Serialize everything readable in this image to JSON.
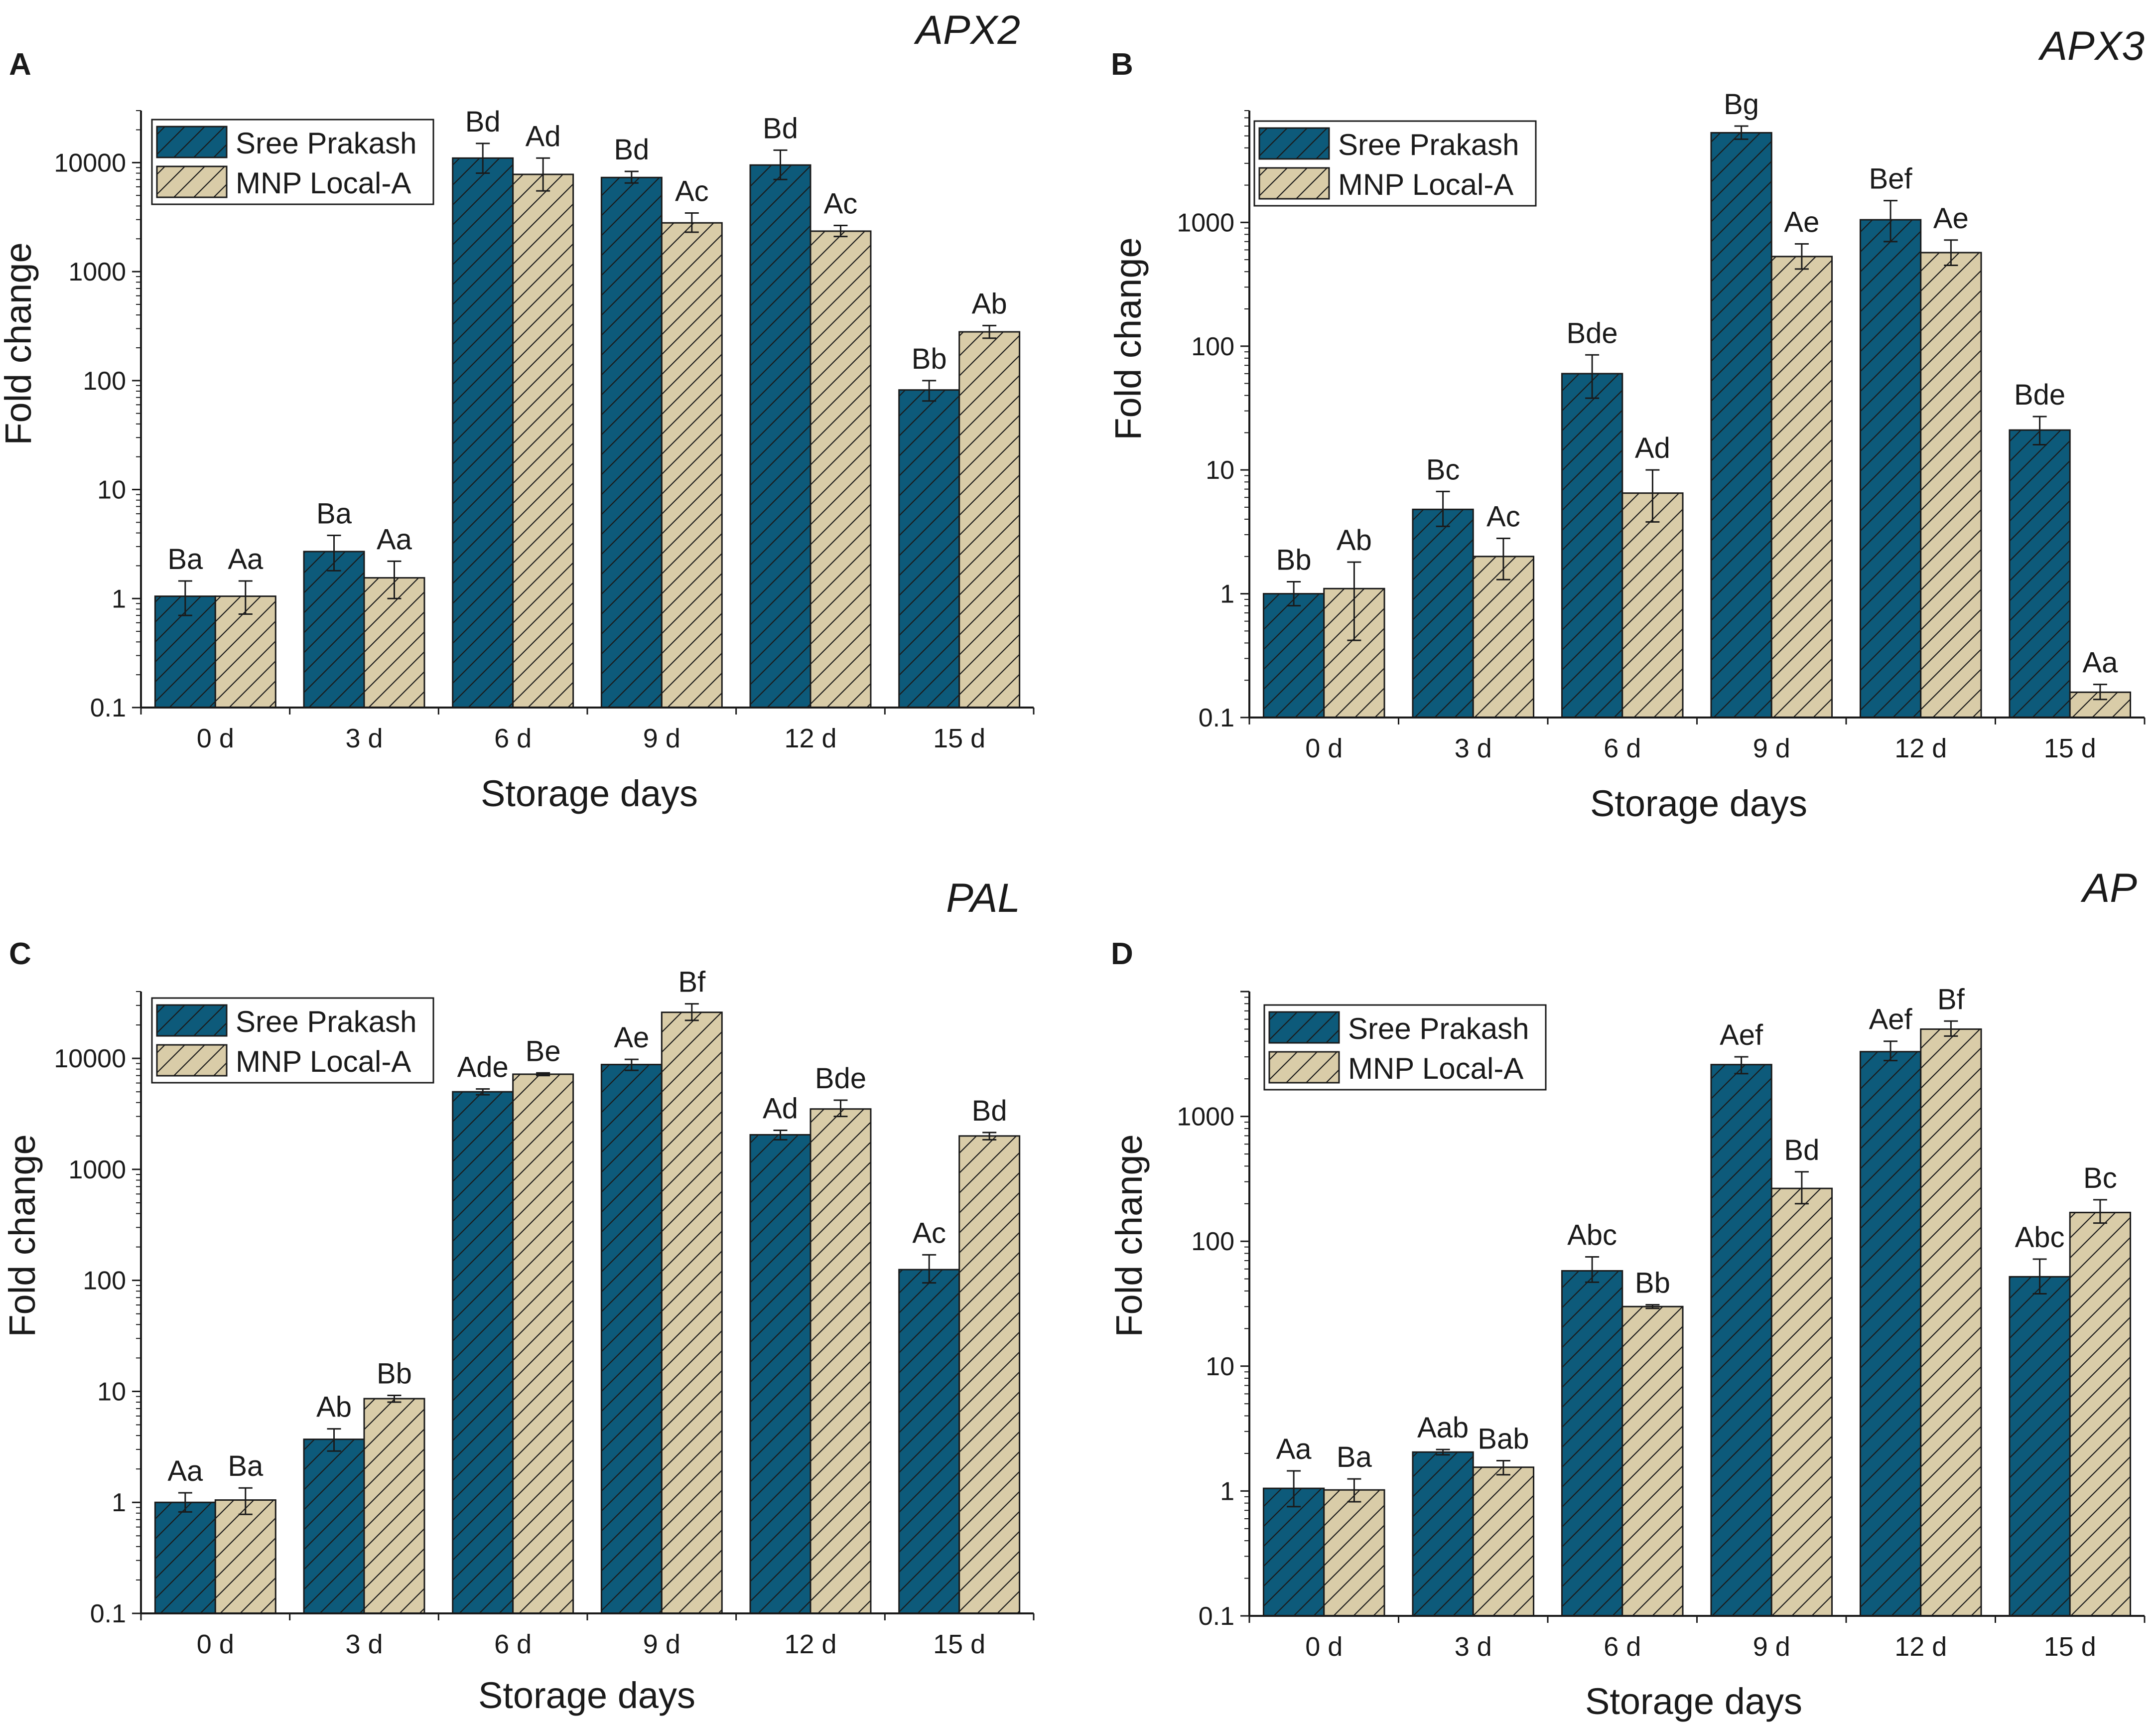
{
  "colors": {
    "series1": "#0d5a7a",
    "series2": "#d9cca8",
    "hatch": "#1a1a1a",
    "axis": "#1a1a1a"
  },
  "chart_data": [
    {
      "panel": "A",
      "title": "APX2",
      "type": "bar",
      "yscale": "log",
      "xlabel": "Storage days",
      "ylabel": "Fold change",
      "ylim": [
        0.1,
        30000
      ],
      "yticks": [
        {
          "v": 0.1,
          "label": "0.1"
        },
        {
          "v": 1,
          "label": "1"
        },
        {
          "v": 10,
          "label": "10"
        },
        {
          "v": 100,
          "label": "100"
        },
        {
          "v": 1000,
          "label": "1000"
        },
        {
          "v": 10000,
          "label": "10000"
        }
      ],
      "legend_position": "top-left",
      "categories": [
        "0 d",
        "3 d",
        "6 d",
        "9 d",
        "12 d",
        "15 d"
      ],
      "series": [
        {
          "name": "Sree Prakash",
          "values": [
            1.05,
            2.7,
            11000,
            7300,
            9500,
            82
          ],
          "err_low": [
            0.7,
            1.8,
            8000,
            6500,
            7000,
            65
          ],
          "err_high": [
            1.45,
            3.8,
            15000,
            8300,
            13000,
            100
          ],
          "labels": [
            "Ba",
            "Ba",
            "Bd",
            "Bd",
            "Bd",
            "Bb"
          ]
        },
        {
          "name": "MNP Local-A",
          "values": [
            1.05,
            1.55,
            7800,
            2800,
            2350,
            280
          ],
          "err_low": [
            0.72,
            1.0,
            5500,
            2300,
            2100,
            245
          ],
          "err_high": [
            1.45,
            2.2,
            11000,
            3450,
            2650,
            320
          ],
          "labels": [
            "Aa",
            "Aa",
            "Ad",
            "Ac",
            "Ac",
            "Ab"
          ]
        }
      ]
    },
    {
      "panel": "B",
      "title": "APX3",
      "type": "bar",
      "yscale": "log",
      "xlabel": "Storage days",
      "ylabel": "Fold change",
      "ylim": [
        0.1,
        8000
      ],
      "yticks": [
        {
          "v": 0.1,
          "label": "0.1"
        },
        {
          "v": 1,
          "label": "1"
        },
        {
          "v": 10,
          "label": "10"
        },
        {
          "v": 100,
          "label": "100"
        },
        {
          "v": 1000,
          "label": "1000"
        }
      ],
      "legend_position": "top-left",
      "categories": [
        "0 d",
        "3 d",
        "6 d",
        "9 d",
        "12 d",
        "15 d"
      ],
      "series": [
        {
          "name": "Sree Prakash",
          "values": [
            1.0,
            4.8,
            60,
            5300,
            1050,
            21
          ],
          "err_low": [
            0.8,
            3.5,
            38,
            4700,
            700,
            16
          ],
          "err_high": [
            1.25,
            6.7,
            85,
            6000,
            1500,
            27
          ],
          "labels": [
            "Bb",
            "Bc",
            "Bde",
            "Bg",
            "Bef",
            "Bde"
          ]
        },
        {
          "name": "MNP Local-A",
          "values": [
            1.1,
            2.0,
            6.5,
            530,
            570,
            0.16
          ],
          "err_low": [
            0.42,
            1.3,
            3.8,
            420,
            450,
            0.14
          ],
          "err_high": [
            1.8,
            2.8,
            10,
            670,
            720,
            0.185
          ],
          "labels": [
            "Ab",
            "Ac",
            "Ad",
            "Ae",
            "Ae",
            "Aa"
          ]
        }
      ]
    },
    {
      "panel": "C",
      "title": "PAL",
      "type": "bar",
      "yscale": "log",
      "xlabel": "Storage days",
      "ylabel": "Fold change",
      "ylim": [
        0.1,
        40000
      ],
      "yticks": [
        {
          "v": 0.1,
          "label": "0.1"
        },
        {
          "v": 1,
          "label": "1"
        },
        {
          "v": 10,
          "label": "10"
        },
        {
          "v": 100,
          "label": "100"
        },
        {
          "v": 1000,
          "label": "1000"
        },
        {
          "v": 10000,
          "label": "10000"
        }
      ],
      "legend_position": "top-left",
      "categories": [
        "0 d",
        "3 d",
        "6 d",
        "9 d",
        "12 d",
        "15 d"
      ],
      "series": [
        {
          "name": "Sree Prakash",
          "values": [
            1.0,
            3.7,
            5000,
            8800,
            2050,
            125
          ],
          "err_low": [
            0.82,
            2.9,
            4700,
            7800,
            1850,
            95
          ],
          "err_high": [
            1.22,
            4.6,
            5300,
            9800,
            2250,
            170
          ],
          "labels": [
            "Aa",
            "Ab",
            "Ade",
            "Ae",
            "Ad",
            "Ac"
          ]
        },
        {
          "name": "MNP Local-A",
          "values": [
            1.05,
            8.6,
            7200,
            26000,
            3500,
            2000
          ],
          "err_low": [
            0.78,
            8.0,
            7000,
            22000,
            3000,
            1850
          ],
          "err_high": [
            1.35,
            9.2,
            7400,
            31000,
            4200,
            2150
          ],
          "labels": [
            "Ba",
            "Bb",
            "Be",
            "Bf",
            "Bde",
            "Bd"
          ]
        }
      ]
    },
    {
      "panel": "D",
      "title": "AP",
      "type": "bar",
      "yscale": "log",
      "xlabel": "Storage days",
      "ylabel": "Fold change",
      "ylim": [
        0.1,
        10000
      ],
      "yticks": [
        {
          "v": 0.1,
          "label": "0.1"
        },
        {
          "v": 1,
          "label": "1"
        },
        {
          "v": 10,
          "label": "10"
        },
        {
          "v": 100,
          "label": "100"
        },
        {
          "v": 1000,
          "label": "1000"
        }
      ],
      "legend_position": "top-left",
      "categories": [
        "0 d",
        "3 d",
        "6 d",
        "9 d",
        "12 d",
        "15 d"
      ],
      "series": [
        {
          "name": "Sree Prakash",
          "values": [
            1.05,
            2.05,
            58,
            2600,
            3300,
            52
          ],
          "err_low": [
            0.75,
            1.95,
            47,
            2200,
            2800,
            38
          ],
          "err_high": [
            1.45,
            2.15,
            75,
            3000,
            4000,
            72
          ],
          "labels": [
            "Aa",
            "Aab",
            "Abc",
            "Aef",
            "Aef",
            "Abc"
          ]
        },
        {
          "name": "MNP Local-A",
          "values": [
            1.02,
            1.55,
            30,
            265,
            5000,
            170
          ],
          "err_low": [
            0.82,
            1.35,
            29,
            200,
            4400,
            140
          ],
          "err_high": [
            1.25,
            1.75,
            31,
            360,
            5800,
            215
          ],
          "labels": [
            "Ba",
            "Bab",
            "Bb",
            "Bd",
            "Bf",
            "Bc"
          ]
        }
      ]
    }
  ]
}
